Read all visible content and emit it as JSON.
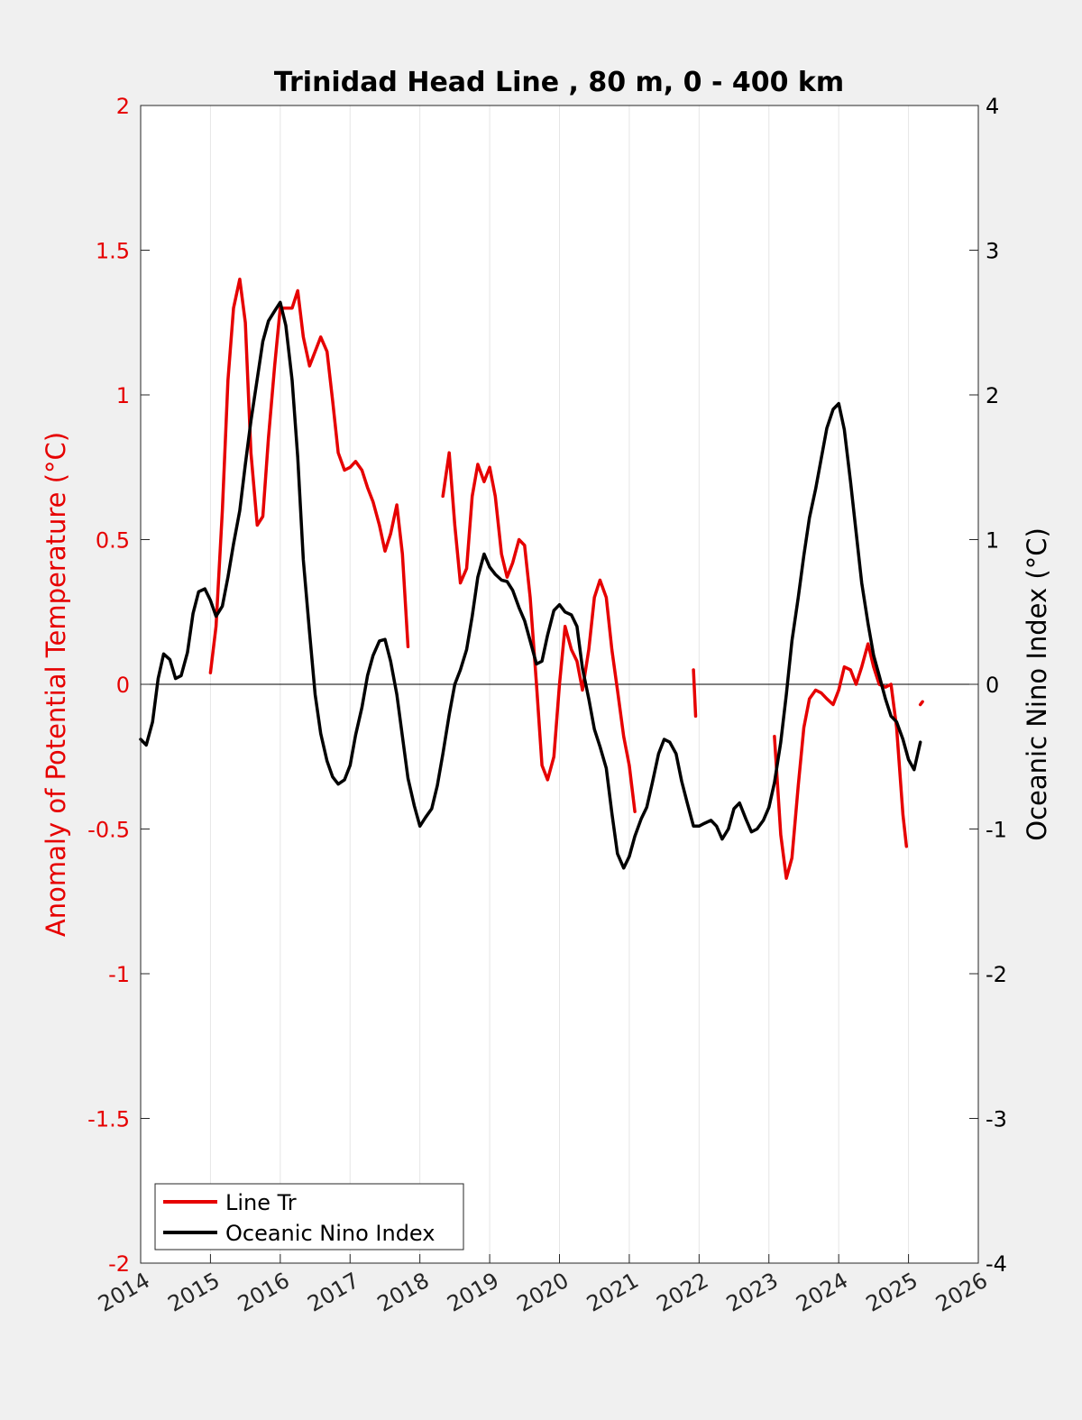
{
  "chart_data": {
    "type": "line",
    "title": "Trinidad Head Line , 80 m, 0 - 400 km",
    "xlabel": "",
    "ylabel": "Anomaly of Potential Temperature (°C)",
    "y2label": "Oceanic Nino Index (°C)",
    "xlim": [
      2014,
      2026
    ],
    "ylim": [
      -2,
      2
    ],
    "y2lim": [
      -4,
      4
    ],
    "x_ticks": [
      "2014",
      "2015",
      "2016",
      "2017",
      "2018",
      "2019",
      "2020",
      "2021",
      "2022",
      "2023",
      "2024",
      "2025",
      "2026"
    ],
    "y_ticks": [
      "-2",
      "-1.5",
      "-1",
      "-0.5",
      "0",
      "0.5",
      "1",
      "1.5",
      "2"
    ],
    "y2_ticks": [
      "-4",
      "-3",
      "-2",
      "-1",
      "0",
      "1",
      "2",
      "3",
      "4"
    ],
    "grid": "vertical",
    "legend_position": "bottom-left",
    "colors": {
      "line_tr": "#e60000",
      "oni": "#000000",
      "left_axis": "#e60000",
      "right_axis": "#000000"
    },
    "series": [
      {
        "name": "Line Tr",
        "axis": "left",
        "segments": [
          [
            [
              2015.0,
              0.04
            ],
            [
              2015.08,
              0.2
            ],
            [
              2015.17,
              0.6
            ],
            [
              2015.25,
              1.05
            ],
            [
              2015.33,
              1.3
            ],
            [
              2015.42,
              1.4
            ],
            [
              2015.5,
              1.25
            ],
            [
              2015.58,
              0.8
            ],
            [
              2015.67,
              0.55
            ],
            [
              2015.75,
              0.58
            ],
            [
              2015.83,
              0.85
            ],
            [
              2015.92,
              1.1
            ],
            [
              2016.0,
              1.3
            ],
            [
              2016.08,
              1.3
            ],
            [
              2016.17,
              1.3
            ],
            [
              2016.25,
              1.36
            ],
            [
              2016.33,
              1.2
            ],
            [
              2016.42,
              1.1
            ],
            [
              2016.5,
              1.15
            ],
            [
              2016.58,
              1.2
            ],
            [
              2016.67,
              1.15
            ],
            [
              2016.75,
              0.98
            ],
            [
              2016.83,
              0.8
            ],
            [
              2016.92,
              0.74
            ],
            [
              2017.0,
              0.75
            ],
            [
              2017.08,
              0.77
            ],
            [
              2017.17,
              0.74
            ],
            [
              2017.25,
              0.68
            ],
            [
              2017.33,
              0.63
            ],
            [
              2017.42,
              0.55
            ],
            [
              2017.5,
              0.46
            ],
            [
              2017.58,
              0.52
            ],
            [
              2017.67,
              0.62
            ],
            [
              2017.75,
              0.45
            ],
            [
              2017.83,
              0.13
            ]
          ],
          [
            [
              2018.33,
              0.65
            ],
            [
              2018.42,
              0.8
            ],
            [
              2018.5,
              0.55
            ],
            [
              2018.58,
              0.35
            ],
            [
              2018.67,
              0.4
            ],
            [
              2018.75,
              0.65
            ],
            [
              2018.83,
              0.76
            ],
            [
              2018.92,
              0.7
            ],
            [
              2019.0,
              0.75
            ],
            [
              2019.08,
              0.65
            ],
            [
              2019.17,
              0.45
            ],
            [
              2019.25,
              0.37
            ],
            [
              2019.33,
              0.42
            ],
            [
              2019.42,
              0.5
            ],
            [
              2019.5,
              0.48
            ],
            [
              2019.58,
              0.3
            ],
            [
              2019.67,
              0.0
            ],
            [
              2019.75,
              -0.28
            ],
            [
              2019.83,
              -0.33
            ],
            [
              2019.92,
              -0.25
            ],
            [
              2020.0,
              0.0
            ],
            [
              2020.08,
              0.2
            ],
            [
              2020.17,
              0.12
            ],
            [
              2020.25,
              0.08
            ],
            [
              2020.33,
              -0.02
            ],
            [
              2020.42,
              0.12
            ],
            [
              2020.5,
              0.3
            ],
            [
              2020.58,
              0.36
            ],
            [
              2020.67,
              0.3
            ],
            [
              2020.75,
              0.12
            ],
            [
              2020.83,
              -0.02
            ],
            [
              2020.92,
              -0.18
            ],
            [
              2021.0,
              -0.28
            ],
            [
              2021.08,
              -0.44
            ]
          ],
          [
            [
              2021.92,
              0.05
            ],
            [
              2021.95,
              -0.11
            ]
          ],
          [
            [
              2023.08,
              -0.18
            ],
            [
              2023.17,
              -0.52
            ],
            [
              2023.25,
              -0.67
            ],
            [
              2023.33,
              -0.6
            ],
            [
              2023.42,
              -0.35
            ],
            [
              2023.5,
              -0.15
            ],
            [
              2023.58,
              -0.05
            ],
            [
              2023.67,
              -0.02
            ],
            [
              2023.75,
              -0.03
            ],
            [
              2023.83,
              -0.05
            ],
            [
              2023.92,
              -0.07
            ],
            [
              2024.0,
              -0.02
            ],
            [
              2024.08,
              0.06
            ],
            [
              2024.17,
              0.05
            ],
            [
              2024.25,
              0.0
            ],
            [
              2024.33,
              0.06
            ],
            [
              2024.42,
              0.14
            ],
            [
              2024.5,
              0.06
            ],
            [
              2024.58,
              0.0
            ],
            [
              2024.67,
              -0.01
            ],
            [
              2024.75,
              0.0
            ],
            [
              2024.83,
              -0.15
            ],
            [
              2024.92,
              -0.45
            ],
            [
              2024.97,
              -0.56
            ]
          ],
          [
            [
              2025.17,
              -0.07
            ],
            [
              2025.2,
              -0.06
            ]
          ]
        ]
      },
      {
        "name": "Oceanic Nino Index",
        "axis": "right",
        "segments": [
          [
            [
              2014.0,
              -0.38
            ],
            [
              2014.08,
              -0.42
            ],
            [
              2014.17,
              -0.26
            ],
            [
              2014.25,
              0.04
            ],
            [
              2014.33,
              0.21
            ],
            [
              2014.42,
              0.17
            ],
            [
              2014.5,
              0.04
            ],
            [
              2014.58,
              0.06
            ],
            [
              2014.67,
              0.22
            ],
            [
              2014.75,
              0.49
            ],
            [
              2014.83,
              0.64
            ],
            [
              2014.92,
              0.66
            ],
            [
              2015.0,
              0.58
            ],
            [
              2015.08,
              0.47
            ],
            [
              2015.17,
              0.54
            ],
            [
              2015.25,
              0.74
            ],
            [
              2015.33,
              0.97
            ],
            [
              2015.42,
              1.2
            ],
            [
              2015.5,
              1.52
            ],
            [
              2015.58,
              1.82
            ],
            [
              2015.67,
              2.11
            ],
            [
              2015.75,
              2.37
            ],
            [
              2015.83,
              2.51
            ],
            [
              2015.92,
              2.58
            ],
            [
              2016.0,
              2.64
            ],
            [
              2016.08,
              2.48
            ],
            [
              2016.17,
              2.1
            ],
            [
              2016.25,
              1.57
            ],
            [
              2016.33,
              0.86
            ],
            [
              2016.42,
              0.36
            ],
            [
              2016.5,
              -0.07
            ],
            [
              2016.58,
              -0.34
            ],
            [
              2016.67,
              -0.53
            ],
            [
              2016.75,
              -0.64
            ],
            [
              2016.83,
              -0.69
            ],
            [
              2016.92,
              -0.66
            ],
            [
              2017.0,
              -0.56
            ],
            [
              2017.08,
              -0.35
            ],
            [
              2017.17,
              -0.16
            ],
            [
              2017.25,
              0.06
            ],
            [
              2017.33,
              0.2
            ],
            [
              2017.42,
              0.3
            ],
            [
              2017.5,
              0.31
            ],
            [
              2017.58,
              0.16
            ],
            [
              2017.67,
              -0.07
            ],
            [
              2017.75,
              -0.36
            ],
            [
              2017.83,
              -0.65
            ],
            [
              2017.92,
              -0.84
            ],
            [
              2018.0,
              -0.98
            ],
            [
              2018.08,
              -0.92
            ],
            [
              2018.17,
              -0.86
            ],
            [
              2018.25,
              -0.7
            ],
            [
              2018.33,
              -0.48
            ],
            [
              2018.42,
              -0.21
            ],
            [
              2018.5,
              0.0
            ],
            [
              2018.58,
              0.1
            ],
            [
              2018.67,
              0.24
            ],
            [
              2018.75,
              0.47
            ],
            [
              2018.83,
              0.74
            ],
            [
              2018.92,
              0.9
            ],
            [
              2019.0,
              0.81
            ],
            [
              2019.08,
              0.76
            ],
            [
              2019.17,
              0.72
            ],
            [
              2019.25,
              0.71
            ],
            [
              2019.33,
              0.65
            ],
            [
              2019.42,
              0.53
            ],
            [
              2019.5,
              0.44
            ],
            [
              2019.58,
              0.3
            ],
            [
              2019.67,
              0.14
            ],
            [
              2019.75,
              0.16
            ],
            [
              2019.83,
              0.34
            ],
            [
              2019.92,
              0.51
            ],
            [
              2020.0,
              0.55
            ],
            [
              2020.08,
              0.5
            ],
            [
              2020.17,
              0.48
            ],
            [
              2020.25,
              0.4
            ],
            [
              2020.33,
              0.11
            ],
            [
              2020.42,
              -0.1
            ],
            [
              2020.5,
              -0.31
            ],
            [
              2020.58,
              -0.43
            ],
            [
              2020.67,
              -0.58
            ],
            [
              2020.75,
              -0.89
            ],
            [
              2020.83,
              -1.17
            ],
            [
              2020.92,
              -1.27
            ],
            [
              2021.0,
              -1.19
            ],
            [
              2021.08,
              -1.05
            ],
            [
              2021.17,
              -0.93
            ],
            [
              2021.25,
              -0.85
            ],
            [
              2021.33,
              -0.68
            ],
            [
              2021.42,
              -0.48
            ],
            [
              2021.5,
              -0.38
            ],
            [
              2021.58,
              -0.4
            ],
            [
              2021.67,
              -0.48
            ],
            [
              2021.75,
              -0.67
            ],
            [
              2021.83,
              -0.82
            ],
            [
              2021.92,
              -0.98
            ],
            [
              2022.0,
              -0.98
            ],
            [
              2022.08,
              -0.96
            ],
            [
              2022.17,
              -0.94
            ],
            [
              2022.25,
              -0.98
            ],
            [
              2022.33,
              -1.07
            ],
            [
              2022.42,
              -1.0
            ],
            [
              2022.5,
              -0.86
            ],
            [
              2022.58,
              -0.82
            ],
            [
              2022.67,
              -0.93
            ],
            [
              2022.75,
              -1.02
            ],
            [
              2022.83,
              -1.0
            ],
            [
              2022.92,
              -0.94
            ],
            [
              2023.0,
              -0.85
            ],
            [
              2023.08,
              -0.68
            ],
            [
              2023.17,
              -0.4
            ],
            [
              2023.25,
              -0.07
            ],
            [
              2023.33,
              0.3
            ],
            [
              2023.42,
              0.6
            ],
            [
              2023.5,
              0.89
            ],
            [
              2023.58,
              1.15
            ],
            [
              2023.67,
              1.35
            ],
            [
              2023.75,
              1.56
            ],
            [
              2023.83,
              1.77
            ],
            [
              2023.92,
              1.9
            ],
            [
              2024.0,
              1.94
            ],
            [
              2024.08,
              1.76
            ],
            [
              2024.17,
              1.4
            ],
            [
              2024.25,
              1.05
            ],
            [
              2024.33,
              0.7
            ],
            [
              2024.42,
              0.42
            ],
            [
              2024.5,
              0.2
            ],
            [
              2024.58,
              0.06
            ],
            [
              2024.67,
              -0.1
            ],
            [
              2024.75,
              -0.22
            ],
            [
              2024.83,
              -0.26
            ],
            [
              2024.92,
              -0.38
            ],
            [
              2025.0,
              -0.52
            ],
            [
              2025.08,
              -0.59
            ],
            [
              2025.17,
              -0.4
            ]
          ]
        ]
      }
    ]
  }
}
